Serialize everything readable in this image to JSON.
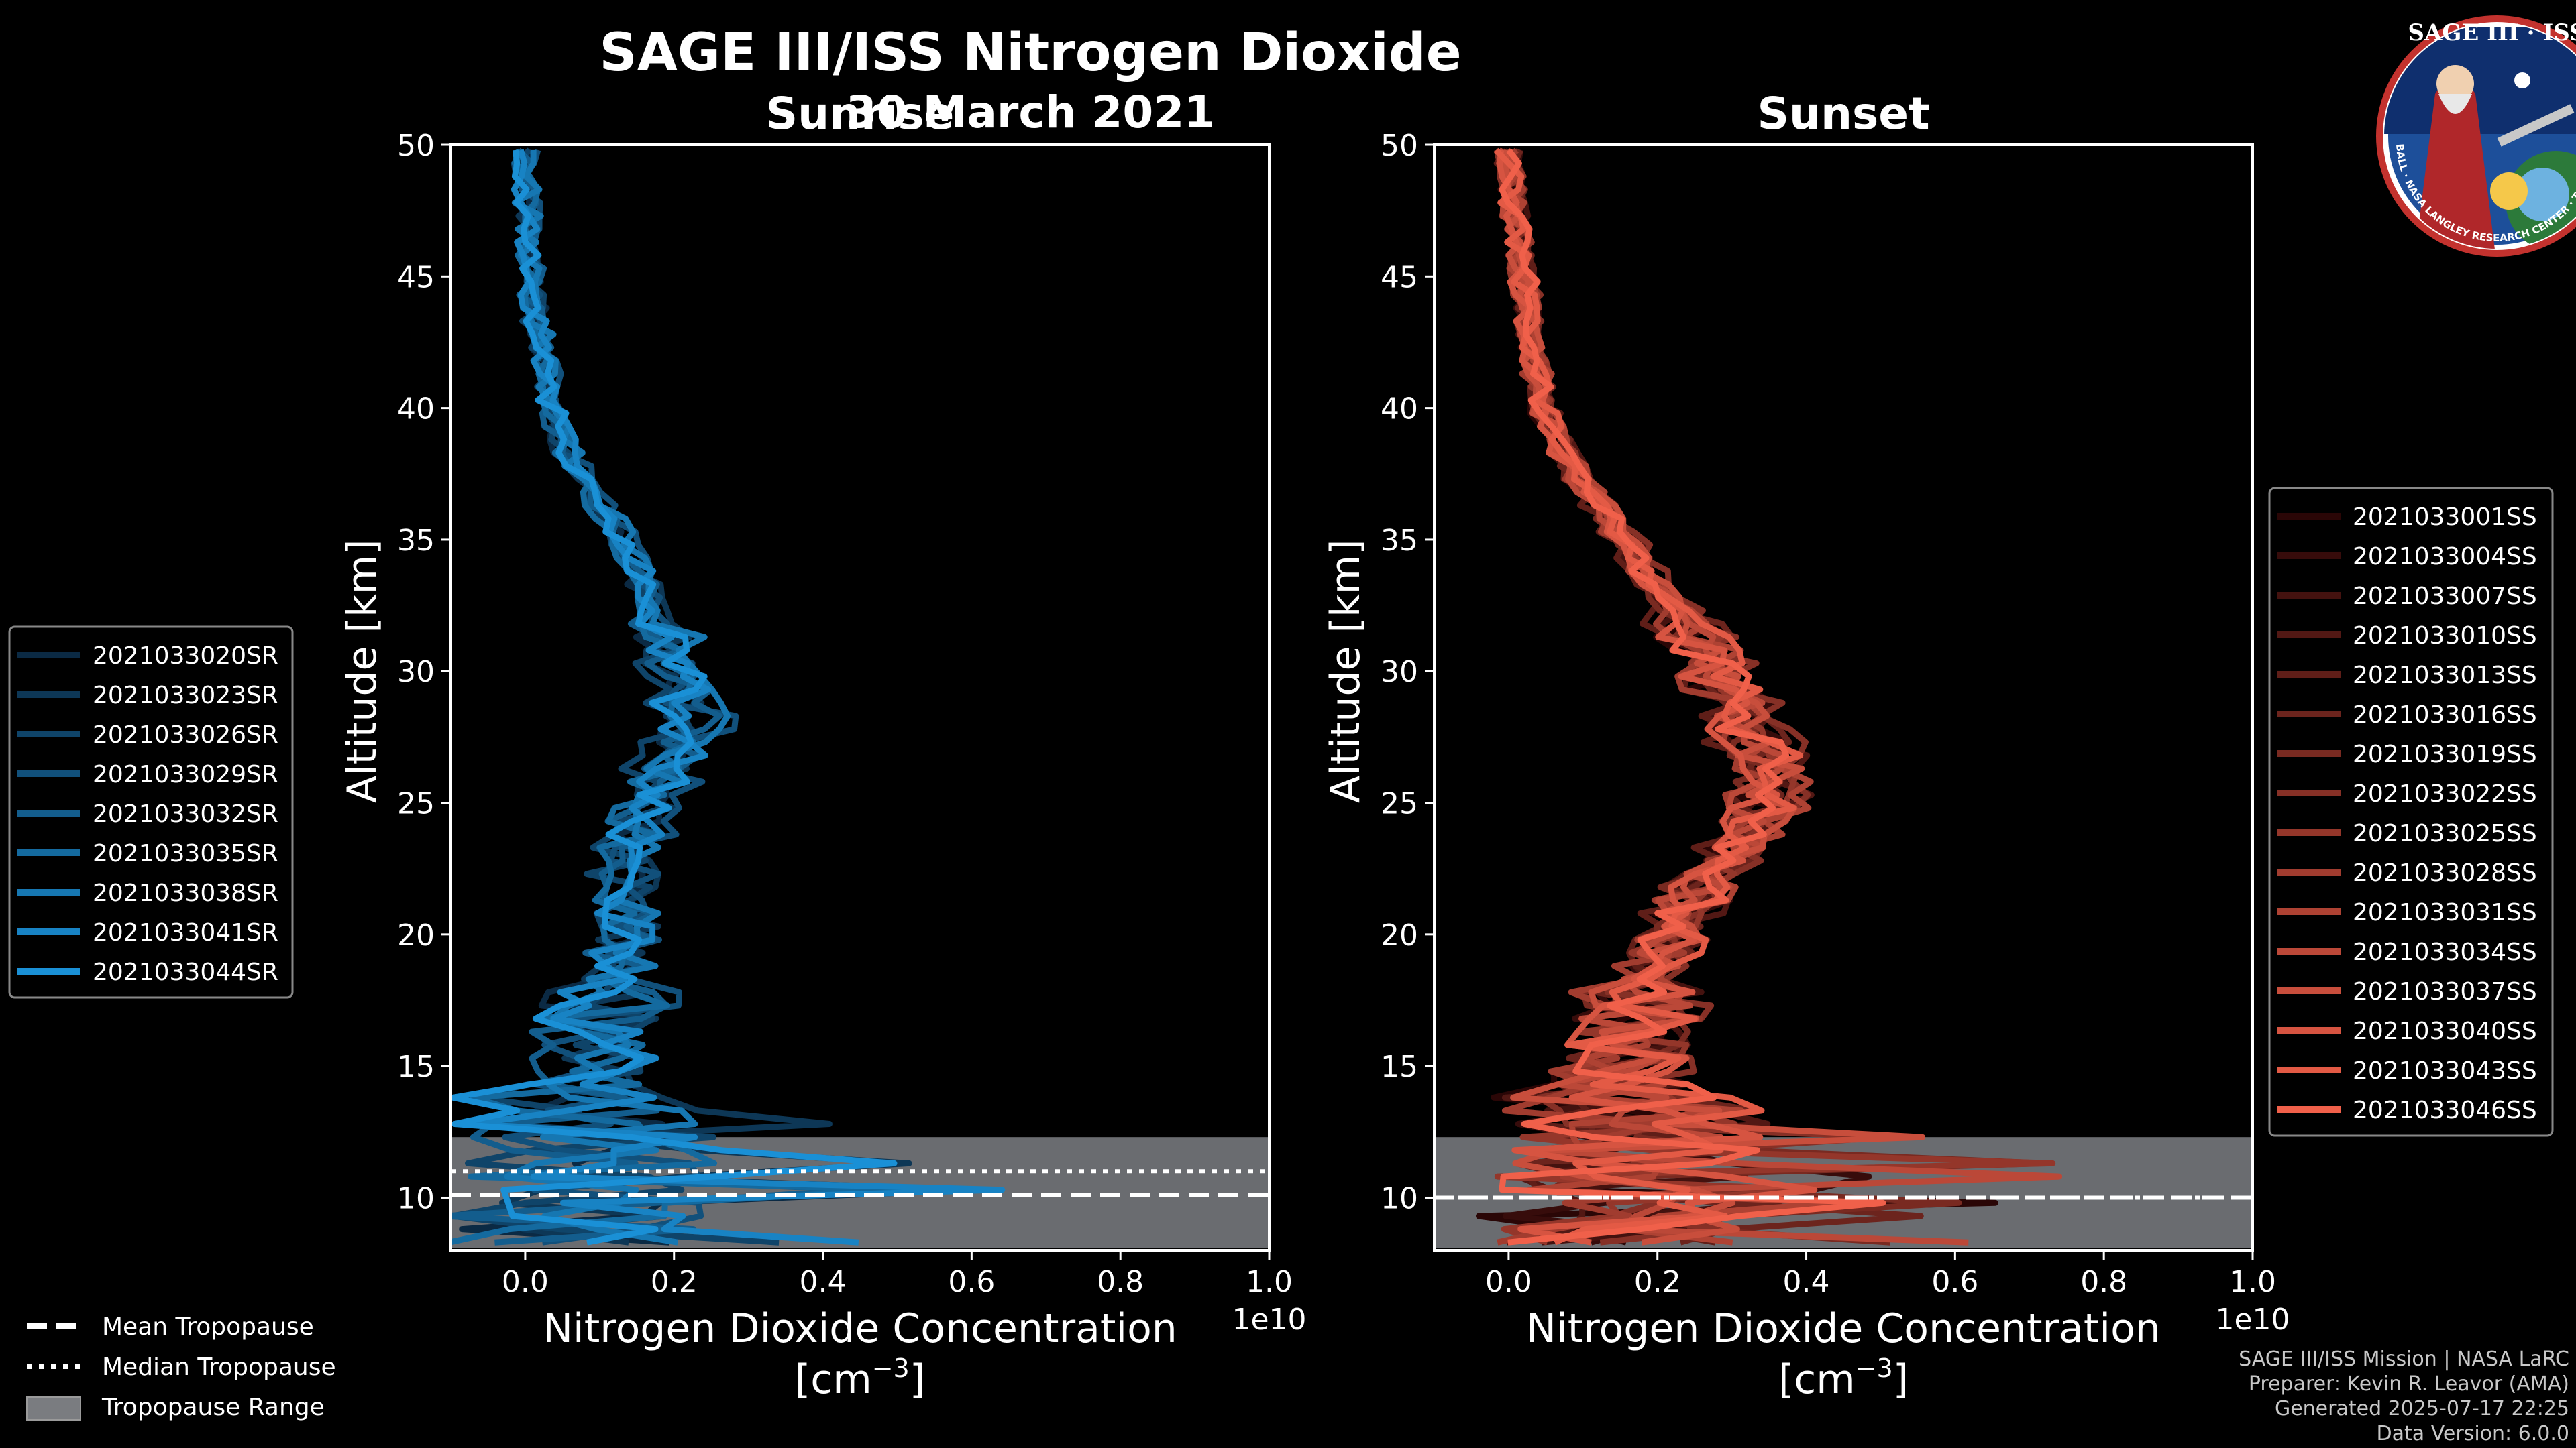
{
  "figure": {
    "title": "SAGE III/ISS Nitrogen Dioxide",
    "date": "30 March 2021",
    "credits": [
      "SAGE III/ISS Mission | NASA LaRC",
      "Preparer: Kevin R. Leavor (AMA)",
      "Generated 2025-07-17 22:25",
      "Data Version: 6.0.0"
    ],
    "logo": {
      "text_top": "SAGE III · ISS",
      "text_ring": "BALL · NASA LANGLEY RESEARCH CENTER · TAS-I · ESA"
    }
  },
  "common_legend": {
    "mean": "Mean Tropopause",
    "median": "Median Tropopause",
    "range": "Tropopause Range"
  },
  "chart_data": [
    {
      "type": "line",
      "title": "Sunrise",
      "xlabel_line1": "Nitrogen Dioxide Concentration",
      "xlabel_line2": "[cm",
      "xlabel_exp": "−3",
      "xlabel_close": "]",
      "ylabel": "Altitude [km]",
      "x_offset_text": "1e10",
      "xlim": [
        -1000000000.0,
        10000000000.0
      ],
      "ylim": [
        8,
        50
      ],
      "xticks": [
        0,
        2000000000.0,
        4000000000.0,
        6000000000.0,
        8000000000.0,
        10000000000.0
      ],
      "xtick_labels": [
        "0.0",
        "0.2",
        "0.4",
        "0.6",
        "0.8",
        "1.0"
      ],
      "yticks": [
        10,
        15,
        20,
        25,
        30,
        35,
        40,
        45,
        50
      ],
      "ytick_labels": [
        "10",
        "15",
        "20",
        "25",
        "30",
        "35",
        "40",
        "45",
        "50"
      ],
      "tropopause": {
        "mean": 10.1,
        "median": 11.0,
        "range": [
          8.1,
          12.3
        ]
      },
      "color_dark": "#0b2a44",
      "color_light": "#1a90d6",
      "legend_position": "left",
      "profile_shape": [
        [
          8.3,
          500000000.0
        ],
        [
          10,
          800000000.0
        ],
        [
          12,
          900000000.0
        ],
        [
          14,
          800000000.0
        ],
        [
          16,
          950000000.0
        ],
        [
          18,
          1150000000.0
        ],
        [
          20,
          1300000000.0
        ],
        [
          22,
          1350000000.0
        ],
        [
          24,
          1450000000.0
        ],
        [
          26,
          1800000000.0
        ],
        [
          28,
          2200000000.0
        ],
        [
          30,
          2000000000.0
        ],
        [
          32,
          1750000000.0
        ],
        [
          34,
          1500000000.0
        ],
        [
          36,
          1050000000.0
        ],
        [
          38,
          600000000.0
        ],
        [
          40,
          350000000.0
        ],
        [
          42,
          250000000.0
        ],
        [
          44,
          100000000.0
        ],
        [
          46,
          50000000.0
        ],
        [
          48,
          20000000.0
        ],
        [
          50,
          0.0
        ]
      ],
      "series": [
        {
          "name": "2021033020SR",
          "values": [],
          "scale": 0.97,
          "seed": 11
        },
        {
          "name": "2021033023SR",
          "values": [],
          "scale": 1.05,
          "seed": 12
        },
        {
          "name": "2021033026SR",
          "values": [],
          "scale": 0.93,
          "seed": 13
        },
        {
          "name": "2021033029SR",
          "values": [],
          "scale": 1.1,
          "seed": 14
        },
        {
          "name": "2021033032SR",
          "values": [],
          "scale": 1.0,
          "seed": 15
        },
        {
          "name": "2021033035SR",
          "values": [],
          "scale": 0.96,
          "seed": 16
        },
        {
          "name": "2021033038SR",
          "values": [],
          "scale": 1.08,
          "seed": 17
        },
        {
          "name": "2021033041SR",
          "values": [],
          "scale": 1.02,
          "seed": 18
        },
        {
          "name": "2021033044SR",
          "values": [],
          "scale": 0.99,
          "seed": 19
        }
      ]
    },
    {
      "type": "line",
      "title": "Sunset",
      "xlabel_line1": "Nitrogen Dioxide Concentration",
      "xlabel_line2": "[cm",
      "xlabel_exp": "−3",
      "xlabel_close": "]",
      "ylabel": "Altitude [km]",
      "x_offset_text": "1e10",
      "xlim": [
        -1000000000.0,
        10000000000.0
      ],
      "ylim": [
        8,
        50
      ],
      "xticks": [
        0,
        2000000000.0,
        4000000000.0,
        6000000000.0,
        8000000000.0,
        10000000000.0
      ],
      "xtick_labels": [
        "0.0",
        "0.2",
        "0.4",
        "0.6",
        "0.8",
        "1.0"
      ],
      "yticks": [
        10,
        15,
        20,
        25,
        30,
        35,
        40,
        45,
        50
      ],
      "ytick_labels": [
        "10",
        "15",
        "20",
        "25",
        "30",
        "35",
        "40",
        "45",
        "50"
      ],
      "tropopause": {
        "mean": 10.0,
        "median": 10.0,
        "range": [
          8.1,
          12.3
        ]
      },
      "color_dark": "#2a0606",
      "color_light": "#f0604a",
      "legend_position": "right",
      "profile_shape": [
        [
          8.3,
          1200000000.0
        ],
        [
          10,
          1500000000.0
        ],
        [
          12,
          1700000000.0
        ],
        [
          14,
          1500000000.0
        ],
        [
          16,
          1600000000.0
        ],
        [
          18,
          1800000000.0
        ],
        [
          20,
          2200000000.0
        ],
        [
          22,
          2600000000.0
        ],
        [
          24,
          3300000000.0
        ],
        [
          26,
          3500000000.0
        ],
        [
          28,
          3200000000.0
        ],
        [
          30,
          2800000000.0
        ],
        [
          32,
          2350000000.0
        ],
        [
          34,
          1750000000.0
        ],
        [
          36,
          1300000000.0
        ],
        [
          38,
          800000000.0
        ],
        [
          40,
          450000000.0
        ],
        [
          42,
          350000000.0
        ],
        [
          44,
          250000000.0
        ],
        [
          46,
          150000000.0
        ],
        [
          48,
          50000000.0
        ],
        [
          50,
          0.0
        ]
      ],
      "series": [
        {
          "name": "2021033001SS",
          "values": [],
          "scale": 0.95,
          "seed": 31
        },
        {
          "name": "2021033004SS",
          "values": [],
          "scale": 1.05,
          "seed": 32
        },
        {
          "name": "2021033007SS",
          "values": [],
          "scale": 0.98,
          "seed": 33
        },
        {
          "name": "2021033010SS",
          "values": [],
          "scale": 1.08,
          "seed": 34
        },
        {
          "name": "2021033013SS",
          "values": [],
          "scale": 0.92,
          "seed": 35
        },
        {
          "name": "2021033016SS",
          "values": [],
          "scale": 1.02,
          "seed": 36
        },
        {
          "name": "2021033019SS",
          "values": [],
          "scale": 0.97,
          "seed": 37
        },
        {
          "name": "2021033022SS",
          "values": [],
          "scale": 1.1,
          "seed": 38
        },
        {
          "name": "2021033025SS",
          "values": [],
          "scale": 1.0,
          "seed": 39
        },
        {
          "name": "2021033028SS",
          "values": [],
          "scale": 0.94,
          "seed": 40
        },
        {
          "name": "2021033031SS",
          "values": [],
          "scale": 1.06,
          "seed": 41
        },
        {
          "name": "2021033034SS",
          "values": [],
          "scale": 0.99,
          "seed": 42
        },
        {
          "name": "2021033037SS",
          "values": [],
          "scale": 1.03,
          "seed": 43
        },
        {
          "name": "2021033040SS",
          "values": [],
          "scale": 0.96,
          "seed": 44
        },
        {
          "name": "2021033043SS",
          "values": [],
          "scale": 1.04,
          "seed": 45
        },
        {
          "name": "2021033046SS",
          "values": [],
          "scale": 1.01,
          "seed": 46
        }
      ]
    }
  ]
}
